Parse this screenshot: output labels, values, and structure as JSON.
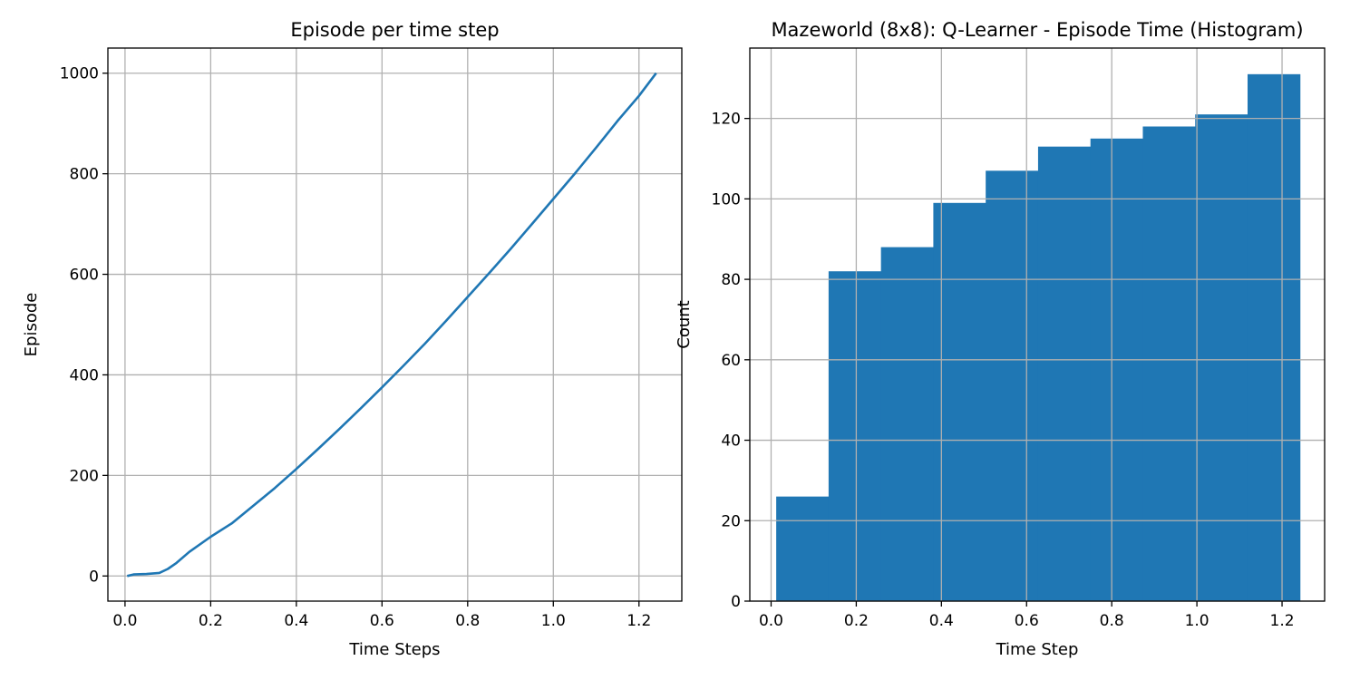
{
  "chart_data": [
    {
      "type": "line",
      "title": "Episode per time step",
      "xlabel": "Time Steps",
      "ylabel": "Episode",
      "xlim": [
        -0.04,
        1.3
      ],
      "ylim": [
        -50,
        1050
      ],
      "xticks": [
        0.0,
        0.2,
        0.4,
        0.6,
        0.8,
        1.0,
        1.2
      ],
      "xtick_labels": [
        "0.0",
        "0.2",
        "0.4",
        "0.6",
        "0.8",
        "1.0",
        "1.2"
      ],
      "yticks": [
        0,
        200,
        400,
        600,
        800,
        1000
      ],
      "ytick_labels": [
        "0",
        "200",
        "400",
        "600",
        "800",
        "1000"
      ],
      "grid": true,
      "color": "#1f77b4",
      "series": [
        {
          "x": [
            0.005,
            0.02,
            0.05,
            0.08,
            0.1,
            0.12,
            0.15,
            0.2,
            0.25,
            0.3,
            0.35,
            0.4,
            0.45,
            0.5,
            0.55,
            0.6,
            0.65,
            0.7,
            0.75,
            0.8,
            0.85,
            0.9,
            0.95,
            1.0,
            1.05,
            1.1,
            1.15,
            1.2,
            1.24
          ],
          "y": [
            0,
            3,
            4,
            6,
            14,
            26,
            48,
            78,
            105,
            140,
            175,
            213,
            252,
            292,
            333,
            375,
            418,
            462,
            508,
            555,
            602,
            650,
            700,
            750,
            800,
            852,
            905,
            955,
            1000
          ]
        }
      ]
    },
    {
      "type": "bar",
      "subtype": "histogram",
      "title": "Mazeworld (8x8): Q-Learner - Episode Time (Histogram)",
      "xlabel": "Time Step",
      "ylabel": "Count",
      "xlim": [
        -0.05,
        1.3
      ],
      "ylim": [
        0,
        137.5
      ],
      "xticks": [
        0.0,
        0.2,
        0.4,
        0.6,
        0.8,
        1.0,
        1.2
      ],
      "xtick_labels": [
        "0.0",
        "0.2",
        "0.4",
        "0.6",
        "0.8",
        "1.0",
        "1.2"
      ],
      "yticks": [
        0,
        20,
        40,
        60,
        80,
        100,
        120
      ],
      "ytick_labels": [
        "0",
        "20",
        "40",
        "60",
        "80",
        "100",
        "120"
      ],
      "grid": true,
      "color": "#1f77b4",
      "bin_edges": [
        0.012,
        0.135,
        0.258,
        0.381,
        0.504,
        0.627,
        0.75,
        0.873,
        0.996,
        1.119,
        1.242
      ],
      "values": [
        26,
        82,
        88,
        99,
        107,
        113,
        115,
        118,
        121,
        131
      ]
    }
  ]
}
